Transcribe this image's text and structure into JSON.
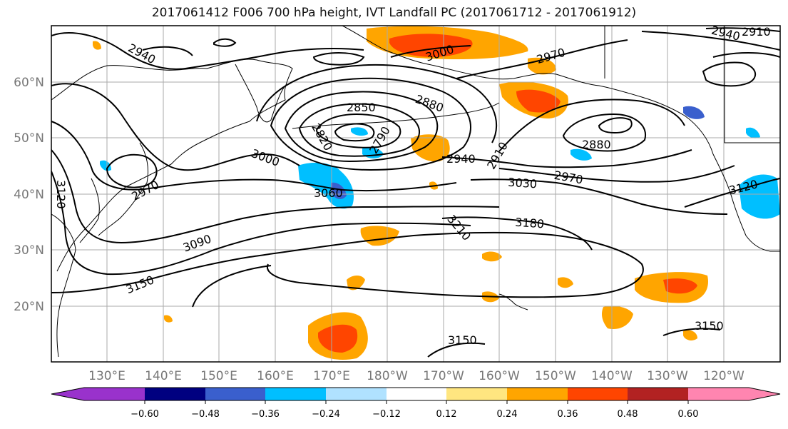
{
  "title": "2017061412 F006 700 hPa height, IVT Landfall PC (2017061712 - 2017061912)",
  "axes": {
    "lon_labels": [
      "130°E",
      "140°E",
      "150°E",
      "160°E",
      "170°E",
      "180°W",
      "170°W",
      "160°W",
      "150°W",
      "140°W",
      "130°W",
      "120°W"
    ],
    "lat_labels": [
      "60°N",
      "50°N",
      "40°N",
      "30°N",
      "20°N"
    ]
  },
  "contour_labels": [
    "2940",
    "3000",
    "3060",
    "3090",
    "3150",
    "2970",
    "3120",
    "2850",
    "2820",
    "2790",
    "2880",
    "2910",
    "2940",
    "2970",
    "3030",
    "3180",
    "3210",
    "3000",
    "2970",
    "2880",
    "2940",
    "2910",
    "3120",
    "3150",
    "3150"
  ],
  "colorbar": {
    "ticks": [
      "−0.60",
      "−0.48",
      "−0.36",
      "−0.24",
      "−0.12",
      "0.12",
      "0.24",
      "0.36",
      "0.48",
      "0.60"
    ],
    "colors": [
      "#9932cc",
      "#000080",
      "#3a5fcd",
      "#00bfff",
      "#b0e2ff",
      "#ffffff",
      "#ffe680",
      "#ffa500",
      "#ff4500",
      "#b22222",
      "#ff85b0"
    ]
  }
}
